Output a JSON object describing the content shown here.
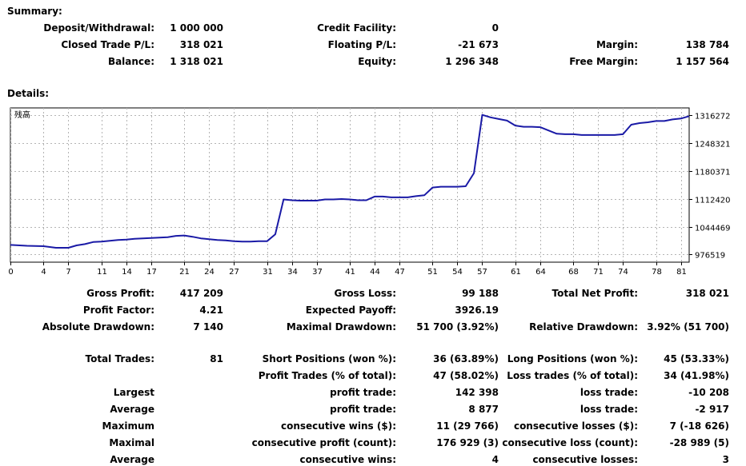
{
  "summary": {
    "heading": "Summary:",
    "deposit_label": "Deposit/Withdrawal:",
    "deposit_value": "1 000 000",
    "credit_label": "Credit Facility:",
    "credit_value": "0",
    "closed_label": "Closed Trade P/L:",
    "closed_value": "318 021",
    "floating_label": "Floating P/L:",
    "floating_value": "-21 673",
    "margin_label": "Margin:",
    "margin_value": "138 784",
    "balance_label": "Balance:",
    "balance_value": "1 318 021",
    "equity_label": "Equity:",
    "equity_value": "1 296 348",
    "free_margin_label": "Free Margin:",
    "free_margin_value": "1 157 564"
  },
  "details": {
    "heading": "Details:",
    "gross_profit_label": "Gross Profit:",
    "gross_profit_value": "417 209",
    "gross_loss_label": "Gross Loss:",
    "gross_loss_value": "99 188",
    "total_net_label": "Total Net Profit:",
    "total_net_value": "318 021",
    "profit_factor_label": "Profit Factor:",
    "profit_factor_value": "4.21",
    "expected_payoff_label": "Expected Payoff:",
    "expected_payoff_value": "3926.19",
    "abs_dd_label": "Absolute Drawdown:",
    "abs_dd_value": "7 140",
    "max_dd_label": "Maximal Drawdown:",
    "max_dd_value": "51 700 (3.92%)",
    "rel_dd_label": "Relative Drawdown:",
    "rel_dd_value": "3.92% (51 700)",
    "total_trades_label": "Total Trades:",
    "total_trades_value": "81",
    "short_label": "Short Positions (won %):",
    "short_value": "36 (63.89%)",
    "long_label": "Long Positions (won %):",
    "long_value": "45 (53.33%)",
    "profit_trades_label": "Profit Trades (% of total):",
    "profit_trades_value": "47 (58.02%)",
    "loss_trades_label": "Loss trades (% of total):",
    "loss_trades_value": "34 (41.98%)",
    "largest_label": "Largest",
    "largest_profit_label": "profit trade:",
    "largest_profit_value": "142 398",
    "largest_loss_label": "loss trade:",
    "largest_loss_value": "-10 208",
    "average_label": "Average",
    "average_profit_label": "profit trade:",
    "average_profit_value": "8 877",
    "average_loss_label": "loss trade:",
    "average_loss_value": "-2 917",
    "maximum_label": "Maximum",
    "max_cons_wins_label": "consecutive wins ($):",
    "max_cons_wins_value": "11 (29 766)",
    "max_cons_losses_label": "consecutive losses ($):",
    "max_cons_losses_value": "7 (-18 626)",
    "maximal_label": "Maximal",
    "maximal_cons_profit_label": "consecutive profit (count):",
    "maximal_cons_profit_value": "176 929 (3)",
    "maximal_cons_loss_label": "consecutive loss (count):",
    "maximal_cons_loss_value": "-28 989 (5)",
    "avg_cons_label": "Average",
    "avg_cons_wins_label": "consecutive wins:",
    "avg_cons_wins_value": "4",
    "avg_cons_losses_label": "consecutive losses:",
    "avg_cons_losses_value": "3"
  },
  "chart_data": {
    "type": "line",
    "legend_label": "残高",
    "line_color": "#1a1aa6",
    "grid": true,
    "xlim": [
      0,
      82
    ],
    "ylim": [
      958000,
      1334000
    ],
    "x_ticks": [
      0,
      4,
      7,
      11,
      14,
      17,
      21,
      24,
      27,
      31,
      34,
      37,
      41,
      44,
      47,
      51,
      54,
      57,
      61,
      64,
      68,
      71,
      74,
      78,
      81
    ],
    "y_ticks": [
      976519,
      1044469,
      1112420,
      1180371,
      1248321,
      1316272
    ],
    "series": [
      {
        "x": [
          0,
          2,
          4,
          5.5,
          7,
          8,
          9,
          10,
          11,
          12,
          13,
          14,
          15,
          16,
          17,
          18,
          19,
          20,
          21,
          22,
          23,
          24,
          25,
          26,
          27,
          28,
          29,
          30,
          31,
          32,
          33,
          34,
          35,
          36,
          37,
          38,
          39,
          40,
          41,
          42,
          43,
          44,
          45,
          46,
          47,
          48,
          49,
          50,
          51,
          52,
          53,
          54,
          55,
          56,
          57,
          58,
          59,
          60,
          61,
          62,
          63,
          64,
          65,
          66,
          67,
          68,
          69,
          70,
          71,
          72,
          73,
          74,
          75,
          76,
          77,
          78,
          79,
          80,
          81,
          82
        ],
        "y": [
          1000000,
          998000,
          997000,
          993000,
          993000,
          999000,
          1002000,
          1007000,
          1008000,
          1010000,
          1012000,
          1013000,
          1015000,
          1016000,
          1017000,
          1018000,
          1019000,
          1022000,
          1023000,
          1020000,
          1016000,
          1014000,
          1012000,
          1011000,
          1009000,
          1008000,
          1008000,
          1009000,
          1009000,
          1026000,
          1111000,
          1109000,
          1108000,
          1108000,
          1108000,
          1111000,
          1111000,
          1112000,
          1111000,
          1109000,
          1109000,
          1118000,
          1118000,
          1116000,
          1116000,
          1116000,
          1119000,
          1121000,
          1140000,
          1142000,
          1142000,
          1142000,
          1143000,
          1175000,
          1317000,
          1311000,
          1307000,
          1303000,
          1291000,
          1288000,
          1288000,
          1287000,
          1279000,
          1271000,
          1270000,
          1270000,
          1268000,
          1268000,
          1268000,
          1268000,
          1268000,
          1270000,
          1293000,
          1297000,
          1299000,
          1302000,
          1302000,
          1306000,
          1308000,
          1314000
        ]
      }
    ]
  }
}
